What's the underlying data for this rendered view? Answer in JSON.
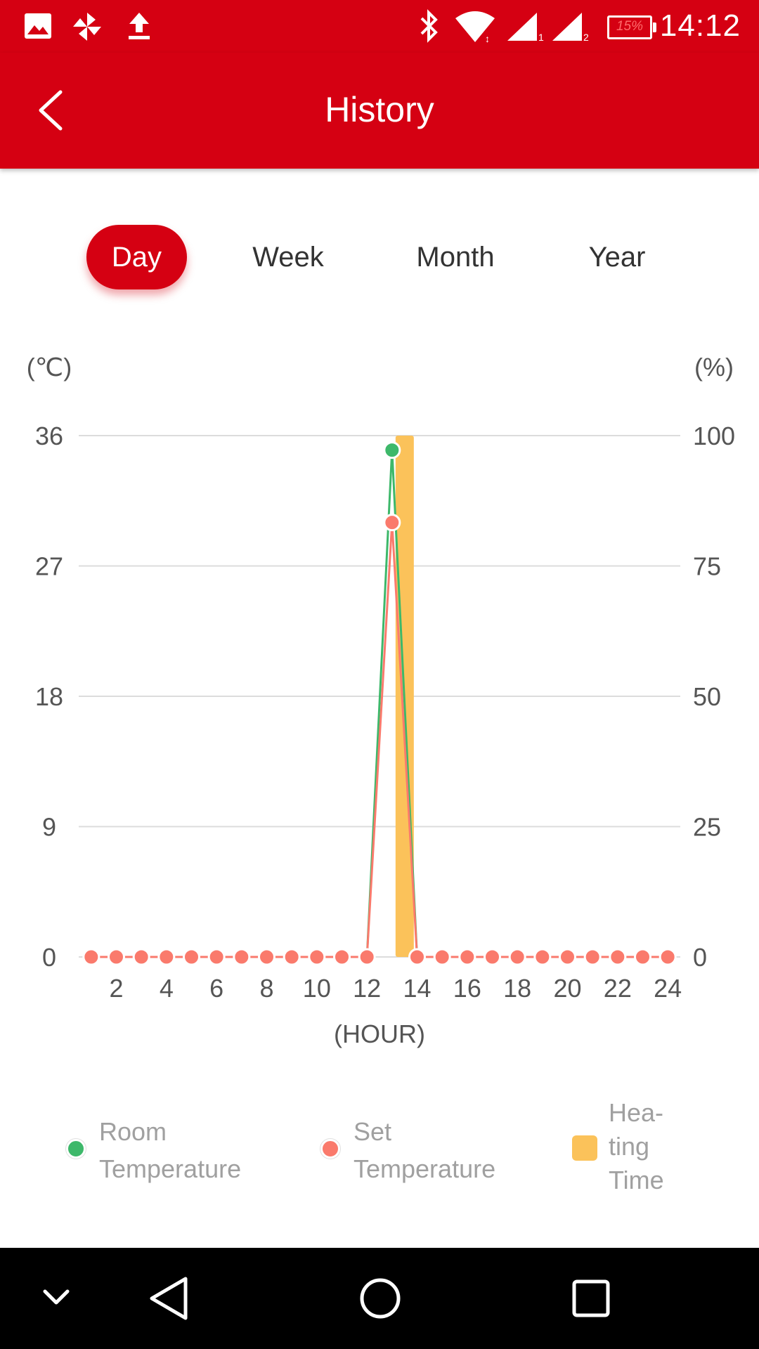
{
  "status_bar": {
    "time": "14:12",
    "battery": "15%",
    "icons": [
      "image-icon",
      "pinwheel-icon",
      "upload-icon",
      "bluetooth-icon",
      "wifi-icon",
      "signal-sim1-icon",
      "signal-sim2-icon",
      "battery-icon"
    ]
  },
  "app_bar": {
    "title": "History",
    "back_icon": "chevron-left-icon"
  },
  "tabs": [
    {
      "label": "Day",
      "active": true
    },
    {
      "label": "Week",
      "active": false
    },
    {
      "label": "Month",
      "active": false
    },
    {
      "label": "Year",
      "active": false
    }
  ],
  "colors": {
    "brand": "#d50012",
    "room": "#3db86a",
    "set": "#fa7a6c",
    "heating": "#fbc25a",
    "grid": "#dcdcdc",
    "axis_text": "#555555"
  },
  "chart_data": {
    "type": "line",
    "x_unit": "(HOUR)",
    "left_unit": "(℃)",
    "right_unit": "(%)",
    "x_ticks": [
      2,
      4,
      6,
      8,
      10,
      12,
      14,
      16,
      18,
      20,
      22,
      24
    ],
    "left_ticks": [
      0,
      9,
      18,
      27,
      36
    ],
    "right_ticks": [
      0,
      25,
      50,
      75,
      100
    ],
    "xlim": [
      0.5,
      24.5
    ],
    "left_ylim": [
      0,
      36
    ],
    "right_ylim": [
      0,
      100
    ],
    "hours": [
      1,
      2,
      3,
      4,
      5,
      6,
      7,
      8,
      9,
      10,
      11,
      12,
      13,
      14,
      15,
      16,
      17,
      18,
      19,
      20,
      21,
      22,
      23,
      24
    ],
    "series": [
      {
        "name": "Room Temperature",
        "values": [
          0,
          0,
          0,
          0,
          0,
          0,
          0,
          0,
          0,
          0,
          0,
          0,
          35,
          0,
          0,
          0,
          0,
          0,
          0,
          0,
          0,
          0,
          0,
          0
        ]
      },
      {
        "name": "Set Temperature",
        "values": [
          0,
          0,
          0,
          0,
          0,
          0,
          0,
          0,
          0,
          0,
          0,
          0,
          30,
          0,
          0,
          0,
          0,
          0,
          0,
          0,
          0,
          0,
          0,
          0
        ]
      }
    ],
    "heating_time": {
      "name": "Heating Time",
      "values": [
        0,
        0,
        0,
        0,
        0,
        0,
        0,
        0,
        0,
        0,
        0,
        0,
        100,
        0,
        0,
        0,
        0,
        0,
        0,
        0,
        0,
        0,
        0,
        0
      ]
    }
  },
  "legend": {
    "room_lines": [
      "Room",
      "Temperature"
    ],
    "set_lines": [
      "Set",
      "Temperature"
    ],
    "heating_lines": [
      "Hea-",
      "ting",
      "Time"
    ]
  },
  "nav_bar": {
    "icons": [
      "chevron-down-icon",
      "back-triangle-icon",
      "home-circle-icon",
      "recents-square-icon"
    ]
  }
}
